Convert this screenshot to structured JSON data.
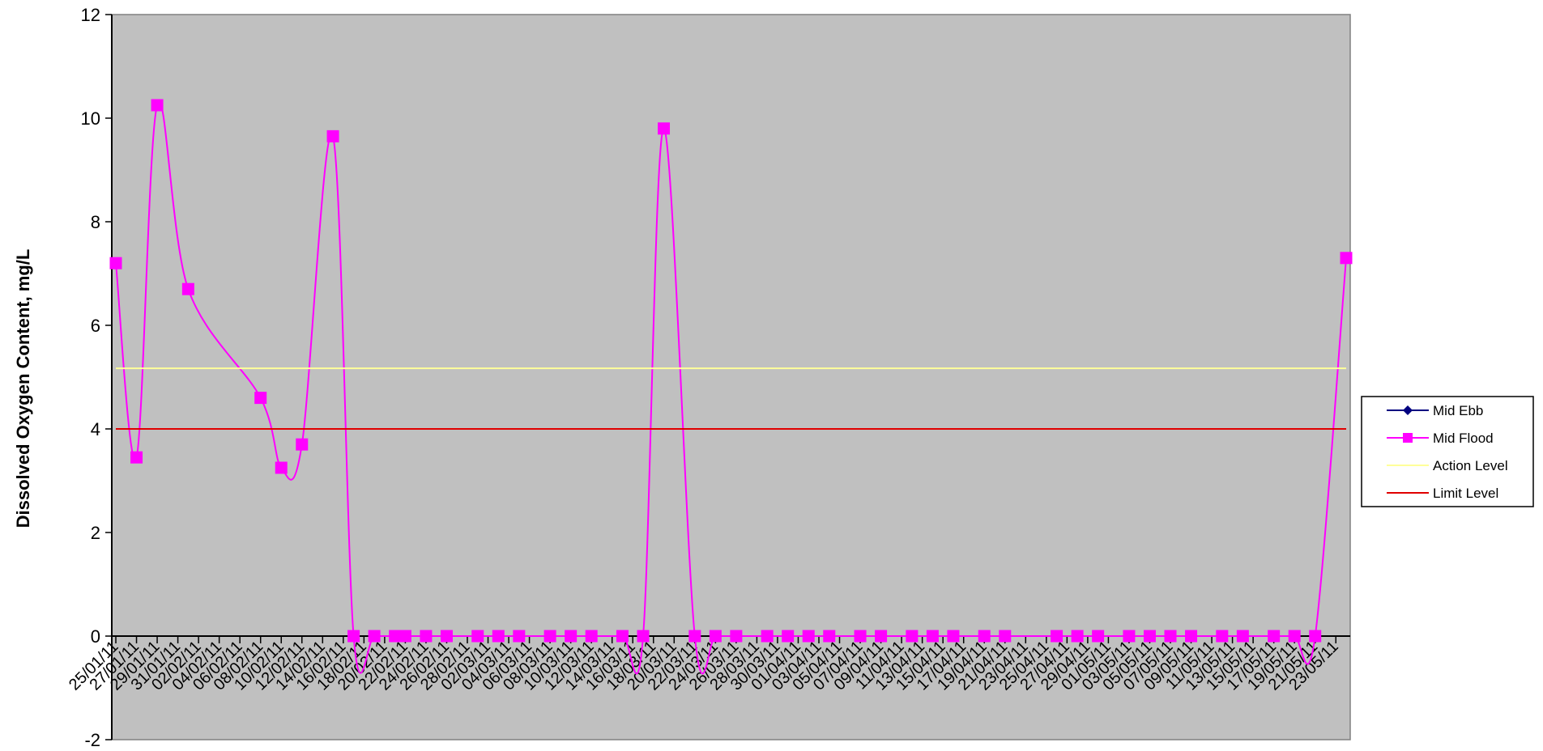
{
  "chart_data": {
    "type": "line",
    "title": "",
    "xlabel": "",
    "ylabel": "Dissolved Oxygen Content, mg/L",
    "ylim": [
      -2,
      12
    ],
    "yticks": [
      "-2",
      "0",
      "2",
      "4",
      "6",
      "8",
      "10",
      "12"
    ],
    "x_range": [
      "25/01/11",
      "24/05/11"
    ],
    "x_tick_labels": [
      "25/01/11",
      "27/01/11",
      "29/01/11",
      "31/01/11",
      "02/02/11",
      "04/02/11",
      "06/02/11",
      "08/02/11",
      "10/02/11",
      "12/02/11",
      "14/02/11",
      "16/02/11",
      "18/02/11",
      "20/02/11",
      "22/02/11",
      "24/02/11",
      "26/02/11",
      "28/02/11",
      "02/03/11",
      "04/03/11",
      "06/03/11",
      "08/03/11",
      "10/03/11",
      "12/03/11",
      "14/03/11",
      "16/03/11",
      "18/03/11",
      "20/03/11",
      "22/03/11",
      "24/03/11",
      "26/03/11",
      "28/03/11",
      "30/03/11",
      "01/04/11",
      "03/04/11",
      "05/04/11",
      "07/04/11",
      "09/04/11",
      "11/04/11",
      "13/04/11",
      "15/04/11",
      "17/04/11",
      "19/04/11",
      "21/04/11",
      "23/04/11",
      "25/04/11",
      "27/04/11",
      "29/04/11",
      "01/05/11",
      "03/05/11",
      "05/05/11",
      "07/05/11",
      "09/05/11",
      "11/05/11",
      "13/05/11",
      "15/05/11",
      "17/05/11",
      "19/05/11",
      "21/05/11",
      "23/05/11"
    ],
    "grid": false,
    "legend_position": "right",
    "series": [
      {
        "name": "Mid Ebb",
        "color": "#000080",
        "marker": "diamond",
        "points": []
      },
      {
        "name": "Mid Flood",
        "color": "#FF00FF",
        "marker": "square",
        "smooth": true,
        "points": [
          [
            "25/01/11",
            7.2
          ],
          [
            "27/01/11",
            3.45
          ],
          [
            "29/01/11",
            10.25
          ],
          [
            "01/02/11",
            6.7
          ],
          [
            "08/02/11",
            4.6
          ],
          [
            "10/02/11",
            3.25
          ],
          [
            "12/02/11",
            3.7
          ],
          [
            "15/02/11",
            9.65
          ],
          [
            "17/02/11",
            0
          ],
          [
            "19/02/11",
            0
          ],
          [
            "21/02/11",
            0
          ],
          [
            "22/02/11",
            0
          ],
          [
            "24/02/11",
            0
          ],
          [
            "26/02/11",
            0
          ],
          [
            "01/03/11",
            0
          ],
          [
            "03/03/11",
            0
          ],
          [
            "05/03/11",
            0
          ],
          [
            "08/03/11",
            0
          ],
          [
            "10/03/11",
            0
          ],
          [
            "12/03/11",
            0
          ],
          [
            "15/03/11",
            0
          ],
          [
            "17/03/11",
            0
          ],
          [
            "19/03/11",
            9.8
          ],
          [
            "22/03/11",
            0
          ],
          [
            "24/03/11",
            0
          ],
          [
            "26/03/11",
            0
          ],
          [
            "29/03/11",
            0
          ],
          [
            "31/03/11",
            0
          ],
          [
            "02/04/11",
            0
          ],
          [
            "04/04/11",
            0
          ],
          [
            "07/04/11",
            0
          ],
          [
            "09/04/11",
            0
          ],
          [
            "12/04/11",
            0
          ],
          [
            "14/04/11",
            0
          ],
          [
            "16/04/11",
            0
          ],
          [
            "19/04/11",
            0
          ],
          [
            "21/04/11",
            0
          ],
          [
            "26/04/11",
            0
          ],
          [
            "28/04/11",
            0
          ],
          [
            "30/04/11",
            0
          ],
          [
            "03/05/11",
            0
          ],
          [
            "05/05/11",
            0
          ],
          [
            "07/05/11",
            0
          ],
          [
            "09/05/11",
            0
          ],
          [
            "12/05/11",
            0
          ],
          [
            "14/05/11",
            0
          ],
          [
            "17/05/11",
            0
          ],
          [
            "19/05/11",
            0
          ],
          [
            "21/05/11",
            0
          ],
          [
            "24/05/11",
            7.3
          ]
        ]
      },
      {
        "name": "Action Level",
        "color": "#FFFF99",
        "marker": "none",
        "constant": 5.17
      },
      {
        "name": "Limit Level",
        "color": "#E00000",
        "marker": "none",
        "constant": 4.0
      }
    ]
  }
}
